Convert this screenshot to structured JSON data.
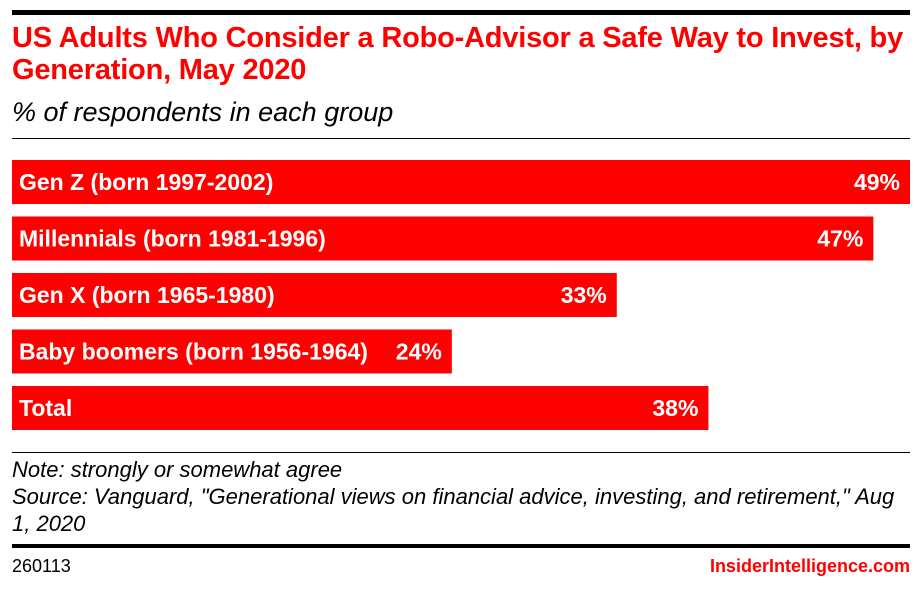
{
  "header": {
    "title": "US Adults Who Consider a Robo-Advisor a Safe Way to Invest, by Generation, May 2020",
    "subtitle": "% of respondents in each group"
  },
  "chart_data": {
    "type": "bar",
    "orientation": "horizontal",
    "categories": [
      "Gen Z (born 1997-2002)",
      "Millennials (born 1981-1996)",
      "Gen X (born 1965-1980)",
      "Baby boomers (born 1956-1964)",
      "Total"
    ],
    "values": [
      49,
      47,
      33,
      24,
      38
    ],
    "value_labels": [
      "49%",
      "47%",
      "33%",
      "24%",
      "38%"
    ],
    "xlim": [
      0,
      49
    ],
    "bar_color": "#ff0000",
    "grid": false,
    "legend": "none"
  },
  "notes": {
    "note": "Note: strongly or somewhat agree",
    "source": "Source: Vanguard, \"Generational views on financial advice, investing, and retirement,\" Aug 1, 2020"
  },
  "footer": {
    "id": "260113",
    "brand": "InsiderIntelligence.com"
  },
  "colors": {
    "accent": "#ff0000",
    "text": "#000000",
    "background": "#ffffff"
  }
}
